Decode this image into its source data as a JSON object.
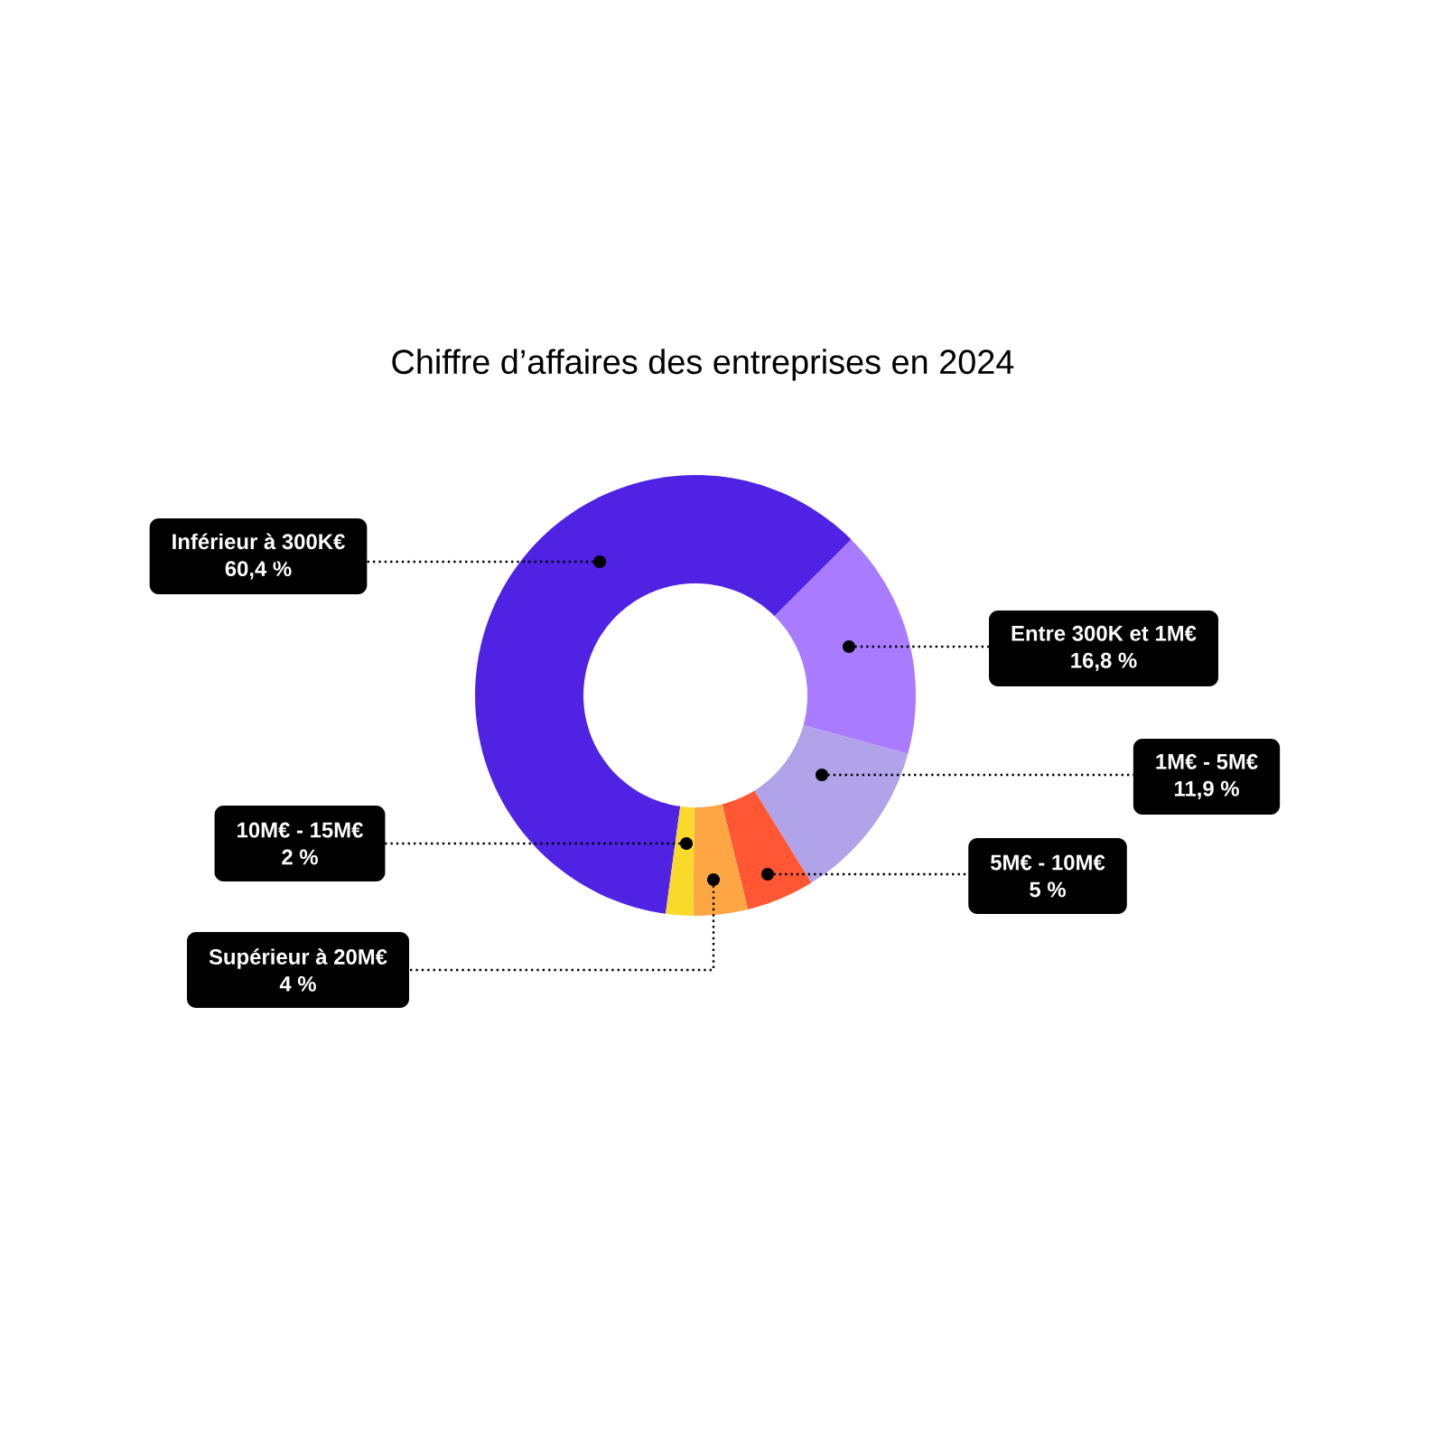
{
  "chart_data": {
    "type": "donut",
    "title": "Chiffre d’affaires des entreprises en 2024",
    "categories": [
      "Inférieur à 300K€",
      "Entre 300K et 1M€",
      "1M€ - 5M€",
      "5M€ - 10M€",
      "Supérieur à 20M€",
      "10M€ - 15M€"
    ],
    "values": [
      60.4,
      16.8,
      11.9,
      5,
      4,
      2
    ],
    "value_labels": [
      "60,4 %",
      "16,8 %",
      "11,9 %",
      "5 %",
      "4 %",
      "2 %"
    ],
    "colors": [
      "#4f22e4",
      "#a97bff",
      "#b0a3e9",
      "#ff5733",
      "#ffa644",
      "#f9d92a"
    ]
  }
}
